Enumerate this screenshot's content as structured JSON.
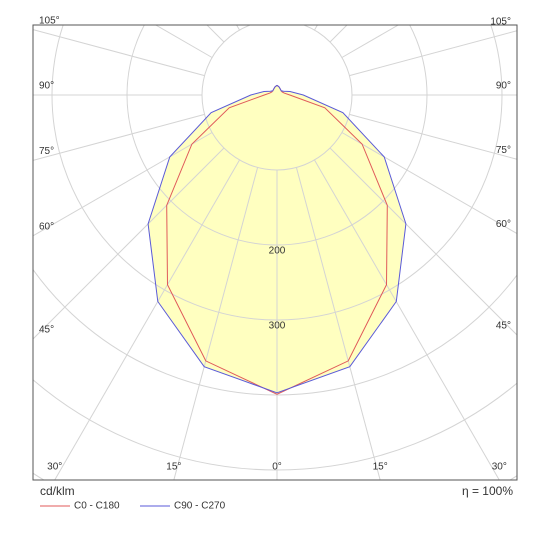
{
  "chart_data": {
    "type": "polar",
    "unit": "cd/klm",
    "efficiency": "η = 100%",
    "theta": [
      0,
      15,
      30,
      45,
      60,
      75,
      90,
      105,
      120,
      135,
      150,
      165,
      180
    ],
    "series": [
      {
        "name": "C0 - C180",
        "color": "#e05a5a",
        "values": [
          399,
          367,
          292,
          208,
          131,
          66,
          17,
          10,
          8,
          8,
          9,
          11,
          13
        ]
      },
      {
        "name": "C90 - C270",
        "color": "#5a5ad8",
        "values": [
          397,
          375,
          318,
          243,
          165,
          91,
          35,
          18,
          10,
          8,
          9,
          11,
          13
        ]
      }
    ],
    "fill_color": "#ffffc0",
    "rlim": [
      0,
      600
    ],
    "rgrid": [
      100,
      200,
      300,
      400,
      500,
      600
    ],
    "rticks": [
      200,
      300
    ],
    "thetaticks": [
      {
        "value": -105,
        "label": "105°"
      },
      {
        "value": -90,
        "label": "90°"
      },
      {
        "value": -75,
        "label": "75°"
      },
      {
        "value": -60,
        "label": "60°"
      },
      {
        "value": -45,
        "label": "45°"
      },
      {
        "value": -30,
        "label": "30°"
      },
      {
        "value": -15,
        "label": "15°"
      },
      {
        "value": 0,
        "label": "0°"
      },
      {
        "value": 15,
        "label": "15°"
      },
      {
        "value": 30,
        "label": "30°"
      },
      {
        "value": 45,
        "label": "45°"
      },
      {
        "value": 60,
        "label": "60°"
      },
      {
        "value": 75,
        "label": "75°"
      },
      {
        "value": 90,
        "label": "90°"
      },
      {
        "value": 105,
        "label": "105°"
      }
    ]
  }
}
